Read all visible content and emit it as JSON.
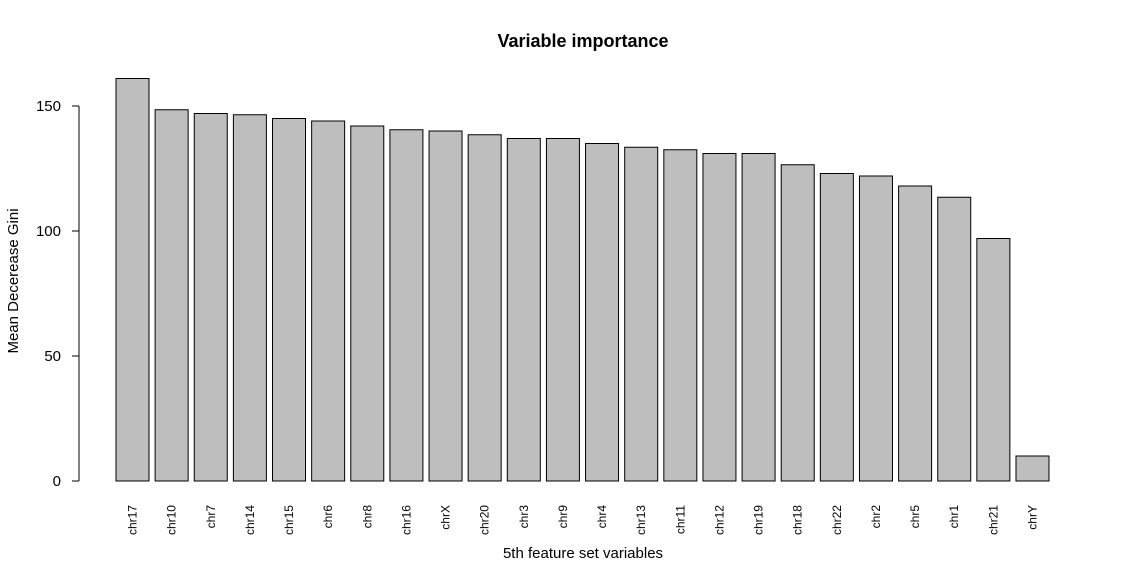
{
  "chart_data": {
    "type": "bar",
    "title": "Variable importance",
    "xlabel": "5th feature set variables",
    "ylabel": "Mean Decerease Gini",
    "categories": [
      "chr17",
      "chr10",
      "chr7",
      "chr14",
      "chr15",
      "chr6",
      "chr8",
      "chr16",
      "chrX",
      "chr20",
      "chr3",
      "chr9",
      "chr4",
      "chr13",
      "chr11",
      "chr12",
      "chr19",
      "chr18",
      "chr22",
      "chr2",
      "chr5",
      "chr1",
      "chr21",
      "chrY"
    ],
    "values": [
      161,
      148.5,
      147,
      146.5,
      145,
      144,
      142,
      140.5,
      140,
      138.5,
      137,
      137,
      135,
      133.5,
      132.5,
      131,
      131,
      126.5,
      123,
      122,
      118,
      113.5,
      97,
      10
    ],
    "ylim": [
      0,
      160
    ],
    "yticks": [
      0,
      50,
      100,
      150
    ],
    "bar_color": "#bebebe",
    "bar_border_color": "#000000",
    "grid": false,
    "legend": "none"
  }
}
